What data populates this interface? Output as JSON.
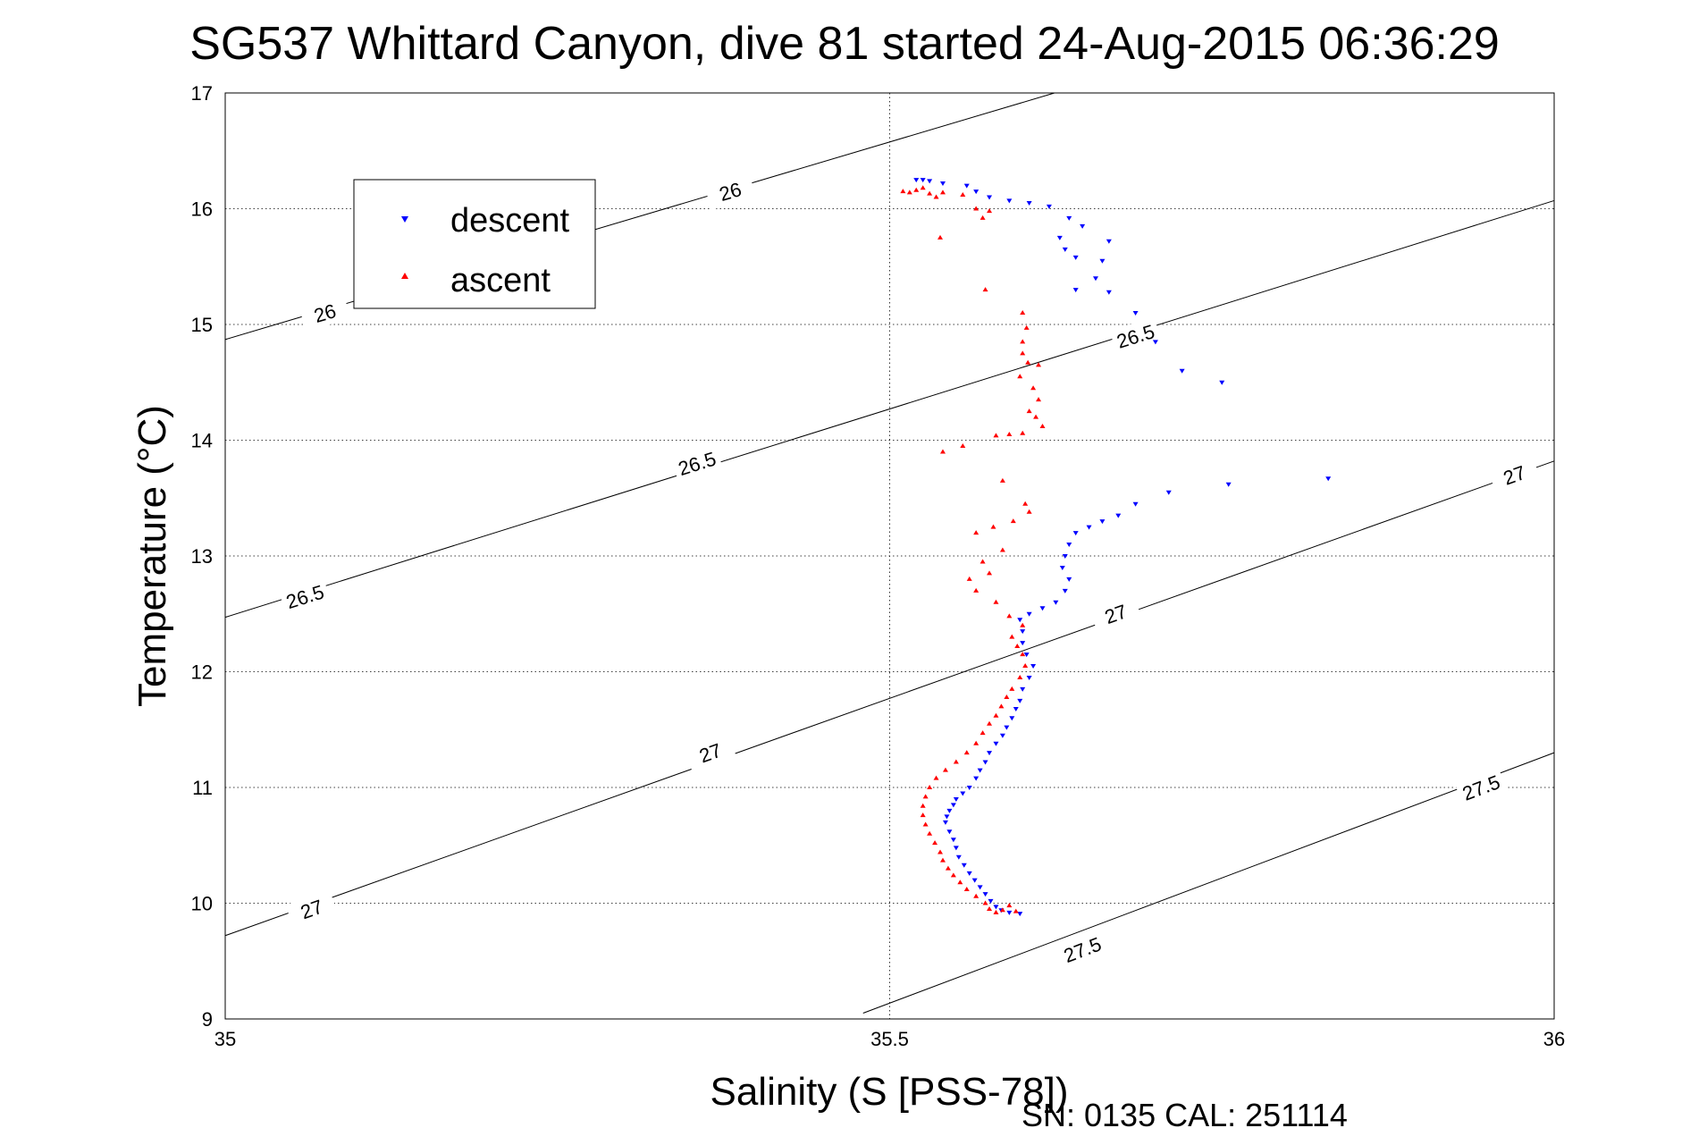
{
  "chart_data": {
    "type": "scatter",
    "title": "SG537 Whittard Canyon, dive 81 started 24-Aug-2015 06:36:29",
    "xlabel": "Salinity (S [PSS-78])",
    "ylabel": "Temperature (°C)",
    "xlim": [
      35,
      36
    ],
    "ylim": [
      9,
      17
    ],
    "x_ticks": [
      "35",
      "35.5",
      "36"
    ],
    "y_ticks": [
      "9",
      "10",
      "11",
      "12",
      "13",
      "14",
      "15",
      "16",
      "17"
    ],
    "grid": "dotted",
    "legend_position": "top-left",
    "footer": "SN: 0135  CAL: 251114",
    "isopycnals": [
      {
        "label": "26",
        "points": [
          [
            35,
            14.87
          ],
          [
            35.624,
            17
          ]
        ],
        "label_positions": [
          [
            35.075,
            15.1
          ],
          [
            35.38,
            16.15
          ]
        ]
      },
      {
        "label": "26.5",
        "points": [
          [
            35,
            12.47
          ],
          [
            36,
            16.07
          ]
        ],
        "label_positions": [
          [
            35.06,
            12.65
          ],
          [
            35.355,
            13.8
          ],
          [
            35.685,
            14.9
          ]
        ]
      },
      {
        "label": "27",
        "points": [
          [
            35,
            9.72
          ],
          [
            36,
            13.82
          ]
        ],
        "label_positions": [
          [
            35.065,
            9.95
          ],
          [
            35.365,
            11.3
          ],
          [
            35.67,
            12.5
          ],
          [
            35.97,
            13.7
          ]
        ]
      },
      {
        "label": "27.5",
        "points": [
          [
            35.48,
            9.05
          ],
          [
            36,
            11.3
          ]
        ],
        "label_positions": [
          [
            35.645,
            9.6
          ],
          [
            35.945,
            11.0
          ]
        ]
      }
    ],
    "series": [
      {
        "name": "descent",
        "color": "#0000ff",
        "marker": "triangle-down",
        "points": [
          [
            35.52,
            16.25
          ],
          [
            35.525,
            16.25
          ],
          [
            35.53,
            16.24
          ],
          [
            35.54,
            16.22
          ],
          [
            35.558,
            16.2
          ],
          [
            35.565,
            16.15
          ],
          [
            35.575,
            16.1
          ],
          [
            35.59,
            16.07
          ],
          [
            35.605,
            16.05
          ],
          [
            35.62,
            16.02
          ],
          [
            35.635,
            15.92
          ],
          [
            35.645,
            15.85
          ],
          [
            35.628,
            15.75
          ],
          [
            35.632,
            15.65
          ],
          [
            35.64,
            15.58
          ],
          [
            35.665,
            15.72
          ],
          [
            35.66,
            15.55
          ],
          [
            35.655,
            15.4
          ],
          [
            35.64,
            15.3
          ],
          [
            35.665,
            15.28
          ],
          [
            35.685,
            15.1
          ],
          [
            35.7,
            14.85
          ],
          [
            35.72,
            14.6
          ],
          [
            35.75,
            14.5
          ],
          [
            35.83,
            13.67
          ],
          [
            35.755,
            13.62
          ],
          [
            35.71,
            13.55
          ],
          [
            35.685,
            13.45
          ],
          [
            35.672,
            13.35
          ],
          [
            35.66,
            13.3
          ],
          [
            35.65,
            13.25
          ],
          [
            35.64,
            13.2
          ],
          [
            35.635,
            13.1
          ],
          [
            35.632,
            13.0
          ],
          [
            35.63,
            12.9
          ],
          [
            35.635,
            12.8
          ],
          [
            35.632,
            12.7
          ],
          [
            35.625,
            12.6
          ],
          [
            35.615,
            12.55
          ],
          [
            35.605,
            12.5
          ],
          [
            35.598,
            12.45
          ],
          [
            35.6,
            12.35
          ],
          [
            35.6,
            12.25
          ],
          [
            35.603,
            12.15
          ],
          [
            35.608,
            12.05
          ],
          [
            35.605,
            11.95
          ],
          [
            35.6,
            11.85
          ],
          [
            35.598,
            11.75
          ],
          [
            35.595,
            11.68
          ],
          [
            35.592,
            11.6
          ],
          [
            35.588,
            11.52
          ],
          [
            35.585,
            11.45
          ],
          [
            35.58,
            11.38
          ],
          [
            35.575,
            11.3
          ],
          [
            35.572,
            11.22
          ],
          [
            35.568,
            11.15
          ],
          [
            35.565,
            11.08
          ],
          [
            35.56,
            11.0
          ],
          [
            35.555,
            10.95
          ],
          [
            35.55,
            10.9
          ],
          [
            35.548,
            10.85
          ],
          [
            35.545,
            10.8
          ],
          [
            35.543,
            10.75
          ],
          [
            35.542,
            10.7
          ],
          [
            35.545,
            10.62
          ],
          [
            35.548,
            10.55
          ],
          [
            35.55,
            10.48
          ],
          [
            35.552,
            10.4
          ],
          [
            35.556,
            10.33
          ],
          [
            35.56,
            10.26
          ],
          [
            35.564,
            10.2
          ],
          [
            35.568,
            10.14
          ],
          [
            35.572,
            10.08
          ],
          [
            35.576,
            10.02
          ],
          [
            35.58,
            9.97
          ],
          [
            35.584,
            9.94
          ],
          [
            35.59,
            9.92
          ],
          [
            35.598,
            9.91
          ]
        ]
      },
      {
        "name": "ascent",
        "color": "#ff0000",
        "marker": "triangle-up",
        "points": [
          [
            35.51,
            16.15
          ],
          [
            35.515,
            16.14
          ],
          [
            35.52,
            16.16
          ],
          [
            35.525,
            16.18
          ],
          [
            35.53,
            16.13
          ],
          [
            35.535,
            16.1
          ],
          [
            35.54,
            16.14
          ],
          [
            35.555,
            16.12
          ],
          [
            35.565,
            16.0
          ],
          [
            35.575,
            15.98
          ],
          [
            35.57,
            15.92
          ],
          [
            35.538,
            15.75
          ],
          [
            35.572,
            15.3
          ],
          [
            35.6,
            15.1
          ],
          [
            35.603,
            14.97
          ],
          [
            35.6,
            14.85
          ],
          [
            35.6,
            14.75
          ],
          [
            35.604,
            14.67
          ],
          [
            35.612,
            14.65
          ],
          [
            35.598,
            14.55
          ],
          [
            35.608,
            14.45
          ],
          [
            35.612,
            14.35
          ],
          [
            35.605,
            14.25
          ],
          [
            35.61,
            14.2
          ],
          [
            35.615,
            14.12
          ],
          [
            35.6,
            14.06
          ],
          [
            35.59,
            14.05
          ],
          [
            35.58,
            14.04
          ],
          [
            35.555,
            13.95
          ],
          [
            35.54,
            13.9
          ],
          [
            35.585,
            13.65
          ],
          [
            35.602,
            13.45
          ],
          [
            35.605,
            13.38
          ],
          [
            35.593,
            13.3
          ],
          [
            35.578,
            13.25
          ],
          [
            35.565,
            13.2
          ],
          [
            35.585,
            13.05
          ],
          [
            35.57,
            12.95
          ],
          [
            35.575,
            12.85
          ],
          [
            35.56,
            12.8
          ],
          [
            35.565,
            12.7
          ],
          [
            35.58,
            12.6
          ],
          [
            35.59,
            12.48
          ],
          [
            35.6,
            12.4
          ],
          [
            35.592,
            12.3
          ],
          [
            35.596,
            12.22
          ],
          [
            35.6,
            12.15
          ],
          [
            35.602,
            12.05
          ],
          [
            35.598,
            11.95
          ],
          [
            35.592,
            11.85
          ],
          [
            35.588,
            11.78
          ],
          [
            35.584,
            11.7
          ],
          [
            35.58,
            11.62
          ],
          [
            35.575,
            11.55
          ],
          [
            35.57,
            11.47
          ],
          [
            35.565,
            11.38
          ],
          [
            35.558,
            11.3
          ],
          [
            35.55,
            11.22
          ],
          [
            35.542,
            11.15
          ],
          [
            35.535,
            11.08
          ],
          [
            35.53,
            11.0
          ],
          [
            35.527,
            10.92
          ],
          [
            35.525,
            10.84
          ],
          [
            35.525,
            10.76
          ],
          [
            35.527,
            10.68
          ],
          [
            35.53,
            10.6
          ],
          [
            35.534,
            10.52
          ],
          [
            35.538,
            10.44
          ],
          [
            35.54,
            10.37
          ],
          [
            35.544,
            10.3
          ],
          [
            35.548,
            10.24
          ],
          [
            35.553,
            10.18
          ],
          [
            35.558,
            10.12
          ],
          [
            35.565,
            10.06
          ],
          [
            35.572,
            10.0
          ],
          [
            35.575,
            9.95
          ],
          [
            35.58,
            9.92
          ],
          [
            35.585,
            9.94
          ],
          [
            35.59,
            9.98
          ],
          [
            35.595,
            9.93
          ]
        ]
      }
    ]
  }
}
